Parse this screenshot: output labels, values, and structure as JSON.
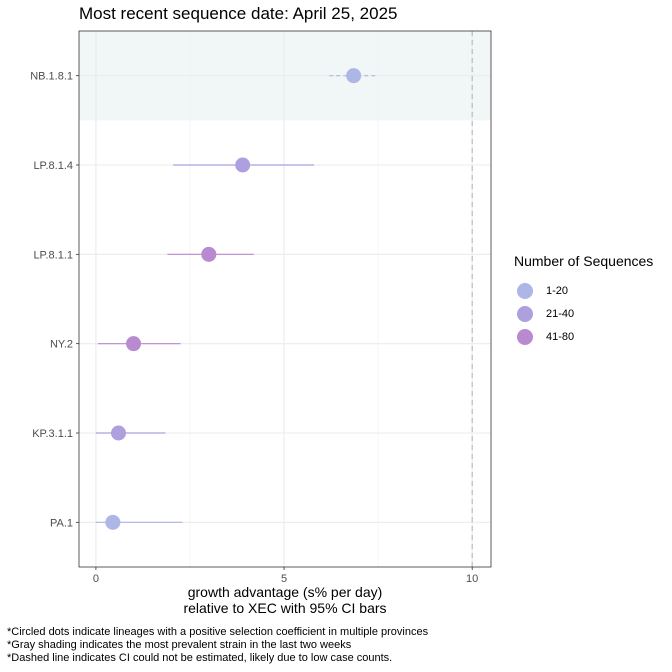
{
  "chart_data": {
    "type": "scatter",
    "title": "Most recent sequence date: April 25, 2025",
    "xlabel_line1": "growth advantage (s% per day)",
    "xlabel_line2": "relative to  XEC  with 95% CI bars",
    "xlim": [
      -0.45,
      10.5
    ],
    "xticks": [
      0,
      5,
      10
    ],
    "reference_line_x": 10,
    "grid": true,
    "legend_position": "right",
    "categories": [
      "NB.1.8.1",
      "LP.8.1.4",
      "LP.8.1.1",
      "NY.2",
      "KP.3.1.1",
      "PA.1"
    ],
    "highlighted_category": "NB.1.8.1",
    "points": [
      {
        "lineage": "NB.1.8.1",
        "x": 6.85,
        "ci_low": 6.2,
        "ci_high": 7.5,
        "group": "1-20",
        "ci_dashed": true
      },
      {
        "lineage": "LP.8.1.4",
        "x": 3.9,
        "ci_low": 2.05,
        "ci_high": 5.8,
        "group": "21-40",
        "ci_dashed": false
      },
      {
        "lineage": "LP.8.1.1",
        "x": 3.0,
        "ci_low": 1.9,
        "ci_high": 4.2,
        "group": "41-80",
        "ci_dashed": false
      },
      {
        "lineage": "NY.2",
        "x": 1.0,
        "ci_low": 0.05,
        "ci_high": 2.25,
        "group": "41-80",
        "ci_dashed": false
      },
      {
        "lineage": "KP.3.1.1",
        "x": 0.6,
        "ci_low": 0.0,
        "ci_high": 1.85,
        "group": "21-40",
        "ci_dashed": false
      },
      {
        "lineage": "PA.1",
        "x": 0.45,
        "ci_low": 0.0,
        "ci_high": 2.3,
        "group": "1-20",
        "ci_dashed": false
      }
    ]
  },
  "legend": {
    "title": "Number of Sequences",
    "items": [
      {
        "label": "1-20",
        "color": "#adb6e6"
      },
      {
        "label": "21-40",
        "color": "#ae9fde"
      },
      {
        "label": "41-80",
        "color": "#b98ad0"
      }
    ]
  },
  "footnotes": [
    "*Circled dots indicate lineages with a positive selection coefficient in multiple provinces",
    "*Gray shading indicates the most prevalent strain in the last two weeks",
    "*Dashed line indicates CI could not be estimated, likely due to low case counts."
  ]
}
